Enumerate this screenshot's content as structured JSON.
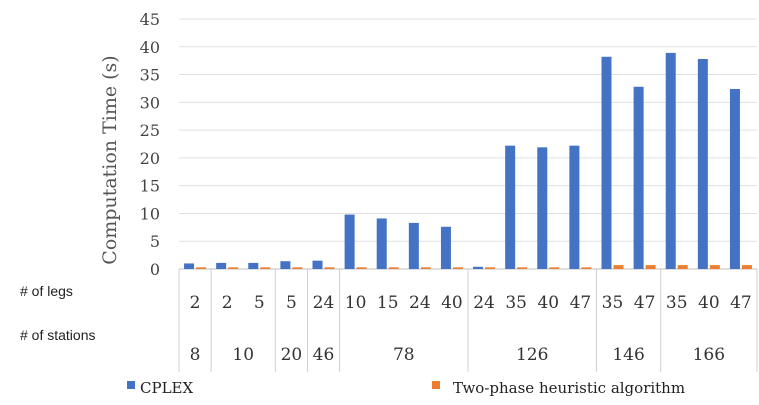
{
  "chart_data": {
    "type": "bar",
    "ylabel": "Computation Time (s)",
    "ylim": [
      0,
      45
    ],
    "yticks": [
      0,
      5,
      10,
      15,
      20,
      25,
      30,
      35,
      40,
      45
    ],
    "grid": true,
    "legend_position": "bottom",
    "row_labels": {
      "legs": "# of legs",
      "stations": "# of stations"
    },
    "categories_legs": [
      "2",
      "2",
      "5",
      "5",
      "24",
      "10",
      "15",
      "24",
      "40",
      "24",
      "35",
      "40",
      "47",
      "35",
      "47",
      "35",
      "40",
      "47"
    ],
    "station_groups": [
      {
        "label": "8",
        "span": 1
      },
      {
        "label": "10",
        "span": 2
      },
      {
        "label": "20",
        "span": 1
      },
      {
        "label": "46",
        "span": 1
      },
      {
        "label": "78",
        "span": 4
      },
      {
        "label": "126",
        "span": 4
      },
      {
        "label": "146",
        "span": 2
      },
      {
        "label": "166",
        "span": 3
      }
    ],
    "series": [
      {
        "name": "CPLEX",
        "color": "#4472C4",
        "values": [
          1.0,
          1.1,
          1.1,
          1.4,
          1.5,
          9.8,
          9.1,
          8.3,
          7.6,
          0.4,
          22.2,
          21.9,
          22.2,
          38.2,
          32.8,
          38.9,
          37.8,
          32.4
        ]
      },
      {
        "name": "Two-phase heuristic algorithm",
        "color": "#ED7D31",
        "values": [
          0.3,
          0.3,
          0.3,
          0.3,
          0.3,
          0.3,
          0.3,
          0.3,
          0.3,
          0.3,
          0.3,
          0.3,
          0.3,
          0.7,
          0.7,
          0.7,
          0.7,
          0.7
        ]
      }
    ]
  }
}
